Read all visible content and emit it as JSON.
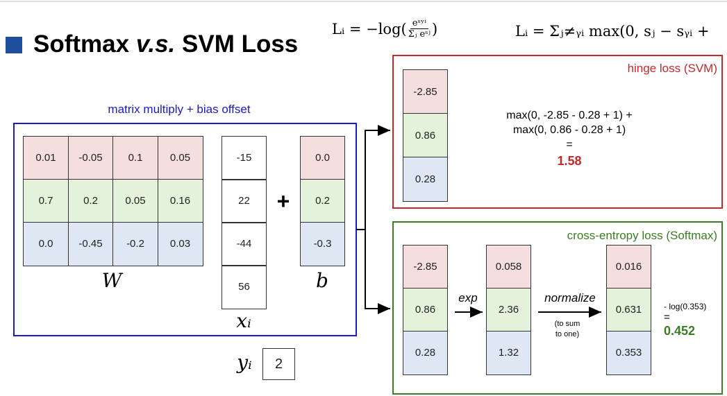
{
  "header": {
    "title_start": "Softmax",
    "title_italic": "v.s.",
    "title_end": "SVM Loss"
  },
  "formulas": {
    "softmax": {
      "prefix": "Lᵢ = −log(",
      "numerator": "eˢʸⁱ",
      "denominator": "Σⱼ eˢʲ",
      "suffix": ")"
    },
    "svm": "Lᵢ = Σⱼ≠ᵧᵢ max(0, sⱼ − sᵧᵢ +"
  },
  "matrix_section": {
    "label": "matrix multiply + bias offset",
    "W": [
      [
        "0.01",
        "-0.05",
        "0.1",
        "0.05"
      ],
      [
        "0.7",
        "0.2",
        "0.05",
        "0.16"
      ],
      [
        "0.0",
        "-0.45",
        "-0.2",
        "0.03"
      ]
    ],
    "x": [
      "-15",
      "22",
      "-44",
      "56"
    ],
    "b": [
      "0.0",
      "0.2",
      "-0.3"
    ],
    "w_label": "W",
    "x_label": "xᵢ",
    "b_label": "b",
    "plus": "+",
    "y_label": "yᵢ",
    "y_value": "2"
  },
  "svm": {
    "title": "hinge loss (SVM)",
    "scores": [
      "-2.85",
      "0.86",
      "0.28"
    ],
    "lines": [
      "max(0, -2.85 - 0.28 + 1) +",
      "max(0, 0.86 - 0.28 + 1)",
      "="
    ],
    "result": "1.58"
  },
  "softmax": {
    "title": "cross-entropy loss (Softmax)",
    "scores": [
      "-2.85",
      "0.86",
      "0.28"
    ],
    "exp_label": "exp",
    "exp_values": [
      "0.058",
      "2.36",
      "1.32"
    ],
    "normalize_label": "normalize",
    "note": [
      "(to sum",
      "to one)"
    ],
    "probabilities": [
      "0.016",
      "0.631",
      "0.353"
    ],
    "log_expr": "- log(0.353)",
    "equals": "=",
    "result": "0.452"
  }
}
